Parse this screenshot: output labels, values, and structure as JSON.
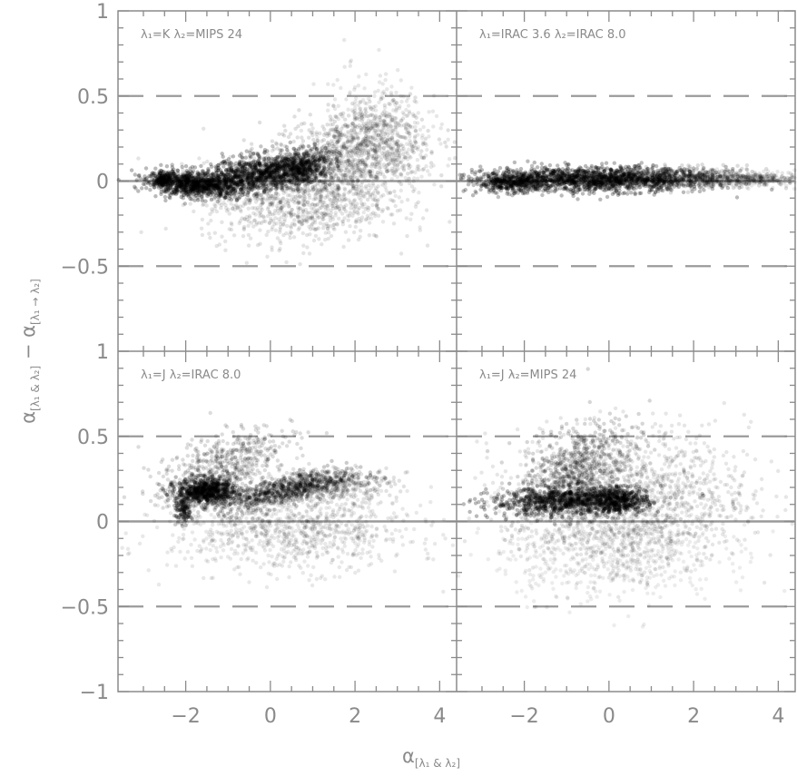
{
  "chart_data": {
    "type": "scatter",
    "layout": "2x2 panels sharing axes, plotted as grey-scale density",
    "grid": false,
    "xlim": [
      -3.6,
      4.4
    ],
    "ylim": [
      -1,
      1
    ],
    "x_ticks": [
      "-2",
      "0",
      "2",
      "4"
    ],
    "y_ticks": [
      "1",
      "0.5",
      "0",
      "-0.5",
      "-1"
    ],
    "xlabel": {
      "main": "α",
      "sub": "[λ₁ & λ₂]"
    },
    "ylabel": {
      "main": "α",
      "sub1": "[λ₁ & λ₂]",
      "sep": " − ",
      "sub2": "[λ₁ → λ₂]"
    },
    "reference_lines": {
      "solid_y": 0,
      "dashed_y": [
        0.5,
        -0.5
      ]
    },
    "colors": {
      "axis": "#8a8a8a",
      "refline": "#9a9a9a",
      "density": "#000000"
    },
    "panels": [
      {
        "label": "λ₁=K   λ₂=MIPS 24",
        "density_clusters": [
          {
            "x": -1.8,
            "y": -0.02,
            "sx": 0.55,
            "sy": 0.035,
            "rot": -4,
            "w": 1.0,
            "n": 900
          },
          {
            "x": -0.3,
            "y": 0.04,
            "sx": 0.7,
            "sy": 0.05,
            "rot": 6,
            "w": 1.0,
            "n": 900
          },
          {
            "x": 0.7,
            "y": 0.08,
            "sx": 0.35,
            "sy": 0.05,
            "rot": 10,
            "w": 0.8,
            "n": 500
          },
          {
            "x": -2.55,
            "y": 0.01,
            "sx": 0.12,
            "sy": 0.02,
            "rot": 0,
            "w": 0.9,
            "n": 150
          },
          {
            "x": 1.8,
            "y": 0.15,
            "sx": 0.9,
            "sy": 0.12,
            "rot": 10,
            "w": 0.35,
            "n": 900
          },
          {
            "x": 0.6,
            "y": -0.12,
            "sx": 1.1,
            "sy": 0.12,
            "rot": 0,
            "w": 0.25,
            "n": 900
          },
          {
            "x": 2.6,
            "y": 0.25,
            "sx": 0.6,
            "sy": 0.18,
            "rot": 15,
            "w": 0.2,
            "n": 500
          }
        ]
      },
      {
        "label": "λ₁=IRAC 3.6   λ₂=IRAC 8.0",
        "density_clusters": [
          {
            "x": -0.3,
            "y": 0.01,
            "sx": 1.3,
            "sy": 0.035,
            "rot": 0,
            "w": 1.0,
            "n": 1500
          },
          {
            "x": -2.3,
            "y": -0.01,
            "sx": 0.4,
            "sy": 0.03,
            "rot": 0,
            "w": 0.9,
            "n": 400
          },
          {
            "x": 1.8,
            "y": 0.02,
            "sx": 1.0,
            "sy": 0.03,
            "rot": 0,
            "w": 0.4,
            "n": 600
          },
          {
            "x": 3.5,
            "y": 0.01,
            "sx": 0.6,
            "sy": 0.02,
            "rot": 0,
            "w": 0.2,
            "n": 300
          }
        ]
      },
      {
        "label": "λ₁=J   λ₂=IRAC 8.0",
        "density_clusters": [
          {
            "x": -1.5,
            "y": 0.18,
            "sx": 0.35,
            "sy": 0.035,
            "rot": 0,
            "w": 1.0,
            "n": 700
          },
          {
            "x": -2.05,
            "y": 0.07,
            "sx": 0.1,
            "sy": 0.04,
            "rot": 0,
            "w": 1.0,
            "n": 120
          },
          {
            "x": 0.3,
            "y": 0.18,
            "sx": 0.8,
            "sy": 0.04,
            "rot": 12,
            "w": 0.7,
            "n": 700
          },
          {
            "x": -1.2,
            "y": 0.32,
            "sx": 0.8,
            "sy": 0.08,
            "rot": 25,
            "w": 0.4,
            "n": 600
          },
          {
            "x": 0.5,
            "y": -0.05,
            "sx": 1.4,
            "sy": 0.12,
            "rot": 0,
            "w": 0.18,
            "n": 1000
          },
          {
            "x": 1.5,
            "y": 0.22,
            "sx": 0.7,
            "sy": 0.05,
            "rot": 0,
            "w": 0.3,
            "n": 400
          }
        ]
      },
      {
        "label": "λ₁=J   λ₂=MIPS 24",
        "density_clusters": [
          {
            "x": -1.0,
            "y": 0.12,
            "sx": 0.9,
            "sy": 0.04,
            "rot": 2,
            "w": 1.0,
            "n": 900
          },
          {
            "x": 0.2,
            "y": 0.12,
            "sx": 0.35,
            "sy": 0.035,
            "rot": 0,
            "w": 1.0,
            "n": 400
          },
          {
            "x": -0.8,
            "y": 0.3,
            "sx": 0.7,
            "sy": 0.1,
            "rot": 30,
            "w": 0.5,
            "n": 700
          },
          {
            "x": 0.5,
            "y": 0.15,
            "sx": 1.4,
            "sy": 0.2,
            "rot": 0,
            "w": 0.22,
            "n": 1400
          },
          {
            "x": 0.0,
            "y": -0.15,
            "sx": 1.3,
            "sy": 0.15,
            "rot": 0,
            "w": 0.12,
            "n": 800
          }
        ]
      }
    ]
  }
}
